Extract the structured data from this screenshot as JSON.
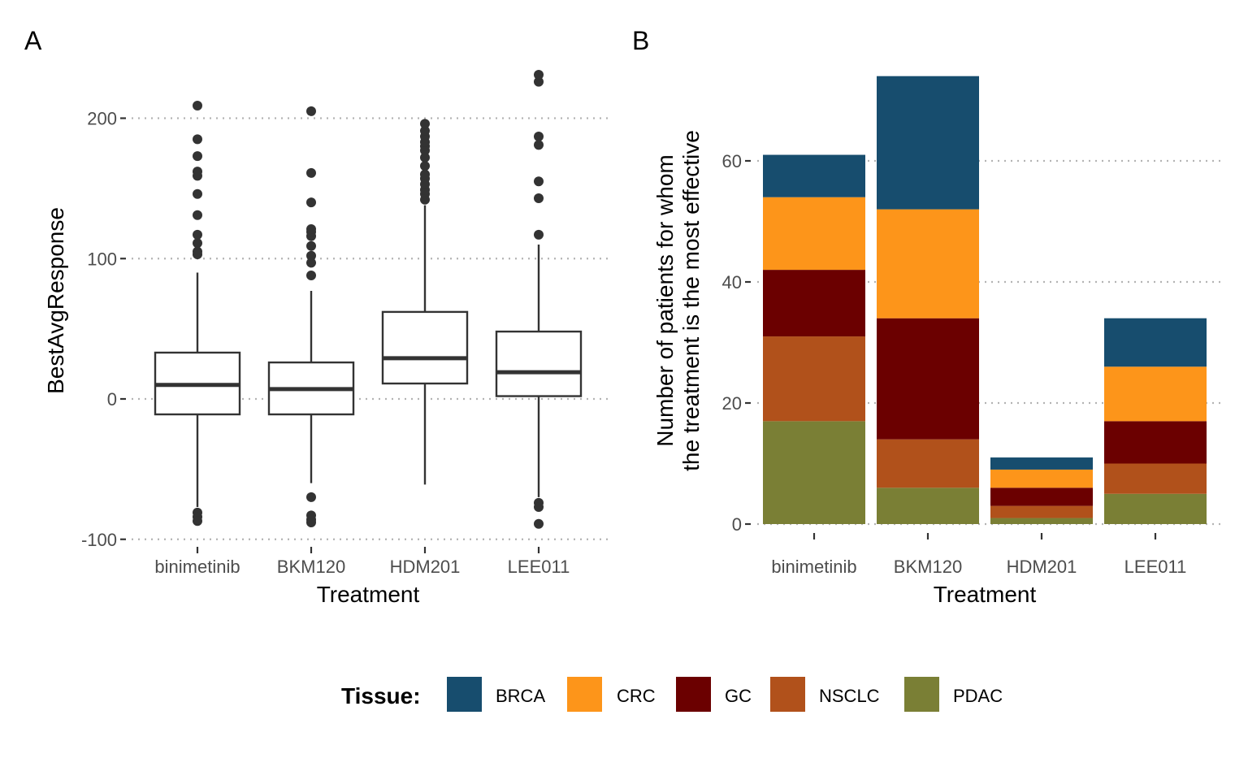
{
  "chart_data": [
    {
      "type": "box",
      "panel_tag": "A",
      "xlabel": "Treatment",
      "ylabel": "BestAvgResponse",
      "ylim": [
        -110,
        235
      ],
      "yticks": [
        -100,
        0,
        100,
        200
      ],
      "ytick_labels": [
        "-100",
        "0",
        "100",
        "200"
      ],
      "grid": "horizontal dotted",
      "categories": [
        "binimetinib",
        "BKM120",
        "HDM201",
        "LEE011"
      ],
      "boxes": [
        {
          "category": "binimetinib",
          "whisker_low": -77,
          "q1": -11,
          "median": 10,
          "q3": 33,
          "whisker_high": 90,
          "outliers": [
            -81,
            -84,
            -87,
            103,
            105,
            111,
            117,
            131,
            146,
            159,
            162,
            173,
            185,
            209
          ]
        },
        {
          "category": "BKM120",
          "whisker_low": -60,
          "q1": -11,
          "median": 7,
          "q3": 26,
          "whisker_high": 77,
          "outliers": [
            -70,
            -83,
            -86,
            -88,
            88,
            97,
            102,
            109,
            116,
            119,
            121,
            140,
            161,
            205
          ]
        },
        {
          "category": "HDM201",
          "whisker_low": -61,
          "q1": 11,
          "median": 29,
          "q3": 62,
          "whisker_high": 138,
          "outliers": [
            142,
            146,
            149,
            153,
            157,
            160,
            166,
            172,
            177,
            180,
            183,
            187,
            191,
            196
          ]
        },
        {
          "category": "LEE011",
          "whisker_low": -70,
          "q1": 2,
          "median": 19,
          "q3": 48,
          "whisker_high": 110,
          "outliers": [
            -74,
            -77,
            -89,
            117,
            143,
            155,
            181,
            187,
            226,
            231
          ]
        }
      ]
    },
    {
      "type": "bar",
      "stacked": true,
      "panel_tag": "B",
      "xlabel": "Treatment",
      "ylabel_lines": [
        "Number of patients for whom",
        "the treatment is the most effective"
      ],
      "ylim": [
        0,
        74
      ],
      "yticks": [
        0,
        20,
        40,
        60
      ],
      "ytick_labels": [
        "0",
        "20",
        "40",
        "60"
      ],
      "grid": "horizontal dotted",
      "categories": [
        "binimetinib",
        "BKM120",
        "HDM201",
        "LEE011"
      ],
      "series": [
        {
          "name": "PDAC",
          "values": [
            17,
            6,
            1,
            5
          ]
        },
        {
          "name": "NSCLC",
          "values": [
            14,
            8,
            2,
            5
          ]
        },
        {
          "name": "GC",
          "values": [
            11,
            20,
            3,
            7
          ]
        },
        {
          "name": "CRC",
          "values": [
            12,
            18,
            3,
            9
          ]
        },
        {
          "name": "BRCA",
          "values": [
            7,
            22,
            2,
            8
          ]
        }
      ]
    }
  ],
  "legend": {
    "title": "Tissue:",
    "placement": "bottom",
    "items": [
      {
        "label": "BRCA",
        "color": "#174d6e"
      },
      {
        "label": "CRC",
        "color": "#fd951a"
      },
      {
        "label": "GC",
        "color": "#6b0000"
      },
      {
        "label": "NSCLC",
        "color": "#b1511b"
      },
      {
        "label": "PDAC",
        "color": "#7a7f35"
      }
    ]
  }
}
